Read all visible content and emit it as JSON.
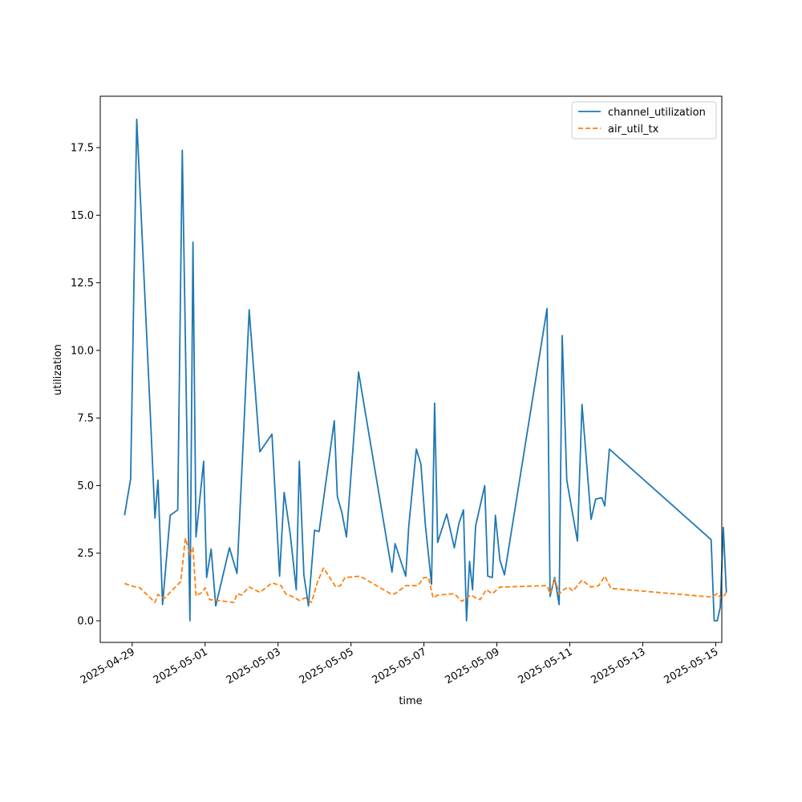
{
  "chart_data": {
    "type": "line",
    "title": "",
    "xlabel": "time",
    "ylabel": "utilization",
    "x_axis_type": "date",
    "xlim": [
      "2025-04-28T03:00",
      "2025-05-15T04:00"
    ],
    "ylim": [
      -0.8,
      19.4
    ],
    "x_ticks": [
      "2025-04-29",
      "2025-05-01",
      "2025-05-03",
      "2025-05-05",
      "2025-05-07",
      "2025-05-09",
      "2025-05-11",
      "2025-05-13",
      "2025-05-15"
    ],
    "y_ticks": [
      "0.0",
      "2.5",
      "5.0",
      "7.5",
      "10.0",
      "12.5",
      "15.0",
      "17.5"
    ],
    "y_tick_values": [
      0,
      2.5,
      5,
      7.5,
      10,
      12.5,
      15,
      17.5
    ],
    "grid": false,
    "legend_position": "top-right",
    "series": [
      {
        "name": "channel_utilization",
        "color": "#1f77b4",
        "dash": "solid",
        "points": [
          [
            "2025-04-28T19:00",
            3.9
          ],
          [
            "2025-04-28T23:00",
            5.25
          ],
          [
            "2025-04-29T03:00",
            18.55
          ],
          [
            "2025-04-29T12:00",
            7.6
          ],
          [
            "2025-04-29T15:00",
            3.8
          ],
          [
            "2025-04-29T17:00",
            5.2
          ],
          [
            "2025-04-29T20:00",
            0.6
          ],
          [
            "2025-04-30T01:00",
            3.9
          ],
          [
            "2025-04-30T06:00",
            4.1
          ],
          [
            "2025-04-30T09:00",
            17.4
          ],
          [
            "2025-04-30T14:00",
            0.0
          ],
          [
            "2025-04-30T16:00",
            14.0
          ],
          [
            "2025-04-30T18:00",
            3.1
          ],
          [
            "2025-04-30T23:00",
            5.9
          ],
          [
            "2025-05-01T01:00",
            1.6
          ],
          [
            "2025-05-01T04:00",
            2.65
          ],
          [
            "2025-05-01T07:00",
            0.55
          ],
          [
            "2025-05-01T16:00",
            2.7
          ],
          [
            "2025-05-01T21:00",
            1.75
          ],
          [
            "2025-05-02T01:00",
            6.5
          ],
          [
            "2025-05-02T05:00",
            11.5
          ],
          [
            "2025-05-02T12:00",
            6.25
          ],
          [
            "2025-05-02T20:00",
            6.9
          ],
          [
            "2025-05-03T01:00",
            1.65
          ],
          [
            "2025-05-03T04:00",
            4.75
          ],
          [
            "2025-05-03T08:00",
            3.2
          ],
          [
            "2025-05-03T12:00",
            1.15
          ],
          [
            "2025-05-03T14:00",
            5.9
          ],
          [
            "2025-05-03T17:00",
            1.7
          ],
          [
            "2025-05-03T20:00",
            0.55
          ],
          [
            "2025-05-04T00:00",
            3.35
          ],
          [
            "2025-05-04T03:00",
            3.3
          ],
          [
            "2025-05-04T13:00",
            7.4
          ],
          [
            "2025-05-04T15:00",
            4.6
          ],
          [
            "2025-05-04T18:00",
            4.0
          ],
          [
            "2025-05-04T21:00",
            3.1
          ],
          [
            "2025-05-05T05:00",
            9.2
          ],
          [
            "2025-05-06T03:00",
            1.8
          ],
          [
            "2025-05-06T05:00",
            2.85
          ],
          [
            "2025-05-06T12:00",
            1.65
          ],
          [
            "2025-05-06T14:00",
            3.5
          ],
          [
            "2025-05-06T19:00",
            6.35
          ],
          [
            "2025-05-06T22:00",
            5.8
          ],
          [
            "2025-05-07T01:00",
            3.5
          ],
          [
            "2025-05-07T05:00",
            1.35
          ],
          [
            "2025-05-07T07:00",
            8.05
          ],
          [
            "2025-05-07T09:00",
            2.9
          ],
          [
            "2025-05-07T15:00",
            3.95
          ],
          [
            "2025-05-07T20:00",
            2.7
          ],
          [
            "2025-05-07T23:00",
            3.6
          ],
          [
            "2025-05-08T02:00",
            4.1
          ],
          [
            "2025-05-08T04:00",
            0.0
          ],
          [
            "2025-05-08T06:00",
            2.2
          ],
          [
            "2025-05-08T08:00",
            1.15
          ],
          [
            "2025-05-08T10:00",
            3.5
          ],
          [
            "2025-05-08T16:00",
            5.0
          ],
          [
            "2025-05-08T18:00",
            1.65
          ],
          [
            "2025-05-08T21:00",
            1.6
          ],
          [
            "2025-05-08T23:00",
            3.9
          ],
          [
            "2025-05-09T02:00",
            2.25
          ],
          [
            "2025-05-09T05:00",
            1.7
          ],
          [
            "2025-05-10T09:00",
            11.55
          ],
          [
            "2025-05-10T11:00",
            0.9
          ],
          [
            "2025-05-10T14:00",
            1.6
          ],
          [
            "2025-05-10T17:00",
            0.6
          ],
          [
            "2025-05-10T19:00",
            10.55
          ],
          [
            "2025-05-10T22:00",
            5.2
          ],
          [
            "2025-05-11T02:00",
            3.9
          ],
          [
            "2025-05-11T05:00",
            2.95
          ],
          [
            "2025-05-11T08:00",
            8.0
          ],
          [
            "2025-05-11T14:00",
            3.75
          ],
          [
            "2025-05-11T17:00",
            4.5
          ],
          [
            "2025-05-11T21:00",
            4.55
          ],
          [
            "2025-05-11T23:00",
            4.25
          ],
          [
            "2025-05-12T02:00",
            6.35
          ],
          [
            "2025-05-14T21:00",
            3.0
          ],
          [
            "2025-05-14T23:00",
            0.0
          ],
          [
            "2025-05-15T01:00",
            0.0
          ],
          [
            "2025-05-15T03:00",
            0.5
          ],
          [
            "2025-05-15T05:00",
            3.45
          ],
          [
            "2025-05-15T07:00",
            1.05
          ]
        ]
      },
      {
        "name": "air_util_tx",
        "color": "#ff7f0e",
        "dash": "dashed",
        "points": [
          [
            "2025-04-28T19:00",
            1.38
          ],
          [
            "2025-04-29T00:00",
            1.28
          ],
          [
            "2025-04-29T05:00",
            1.22
          ],
          [
            "2025-04-29T15:00",
            0.68
          ],
          [
            "2025-04-29T17:00",
            0.98
          ],
          [
            "2025-04-29T21:00",
            0.82
          ],
          [
            "2025-04-30T08:00",
            1.45
          ],
          [
            "2025-04-30T11:00",
            3.05
          ],
          [
            "2025-04-30T14:00",
            2.45
          ],
          [
            "2025-04-30T16:00",
            2.7
          ],
          [
            "2025-04-30T18:00",
            0.92
          ],
          [
            "2025-04-30T22:00",
            1.05
          ],
          [
            "2025-05-01T00:00",
            1.22
          ],
          [
            "2025-05-01T03:00",
            0.78
          ],
          [
            "2025-05-01T19:00",
            0.68
          ],
          [
            "2025-05-01T21:00",
            1.0
          ],
          [
            "2025-05-02T00:00",
            0.95
          ],
          [
            "2025-05-02T05:00",
            1.25
          ],
          [
            "2025-05-02T12:00",
            1.05
          ],
          [
            "2025-05-02T20:00",
            1.4
          ],
          [
            "2025-05-03T02:00",
            1.3
          ],
          [
            "2025-05-03T05:00",
            1.0
          ],
          [
            "2025-05-03T10:00",
            0.88
          ],
          [
            "2025-05-03T14:00",
            0.75
          ],
          [
            "2025-05-03T18:00",
            0.85
          ],
          [
            "2025-05-03T22:00",
            0.68
          ],
          [
            "2025-05-04T02:00",
            1.45
          ],
          [
            "2025-05-04T06:00",
            1.95
          ],
          [
            "2025-05-04T14:00",
            1.25
          ],
          [
            "2025-05-04T17:00",
            1.3
          ],
          [
            "2025-05-04T20:00",
            1.6
          ],
          [
            "2025-05-05T06:00",
            1.65
          ],
          [
            "2025-05-06T02:00",
            1.0
          ],
          [
            "2025-05-06T05:00",
            1.0
          ],
          [
            "2025-05-06T12:00",
            1.3
          ],
          [
            "2025-05-06T20:00",
            1.3
          ],
          [
            "2025-05-07T00:00",
            1.6
          ],
          [
            "2025-05-07T03:00",
            1.6
          ],
          [
            "2025-05-07T06:00",
            0.85
          ],
          [
            "2025-05-07T09:00",
            0.95
          ],
          [
            "2025-05-07T20:00",
            1.0
          ],
          [
            "2025-05-08T01:00",
            0.72
          ],
          [
            "2025-05-08T04:00",
            0.85
          ],
          [
            "2025-05-08T07:00",
            0.95
          ],
          [
            "2025-05-08T10:00",
            0.85
          ],
          [
            "2025-05-08T13:00",
            0.78
          ],
          [
            "2025-05-08T17:00",
            1.15
          ],
          [
            "2025-05-08T21:00",
            1.0
          ],
          [
            "2025-05-09T02:00",
            1.25
          ],
          [
            "2025-05-09T05:00",
            1.25
          ],
          [
            "2025-05-10T09:00",
            1.3
          ],
          [
            "2025-05-10T11:00",
            1.0
          ],
          [
            "2025-05-10T14:00",
            1.55
          ],
          [
            "2025-05-10T17:00",
            1.0
          ],
          [
            "2025-05-10T20:00",
            1.15
          ],
          [
            "2025-05-10T23:00",
            1.25
          ],
          [
            "2025-05-11T02:00",
            1.1
          ],
          [
            "2025-05-11T08:00",
            1.5
          ],
          [
            "2025-05-11T14:00",
            1.25
          ],
          [
            "2025-05-11T19:00",
            1.3
          ],
          [
            "2025-05-11T23:00",
            1.65
          ],
          [
            "2025-05-12T03:00",
            1.2
          ],
          [
            "2025-05-14T21:00",
            0.88
          ],
          [
            "2025-05-15T01:00",
            1.0
          ],
          [
            "2025-05-15T04:00",
            0.82
          ],
          [
            "2025-05-15T07:00",
            1.05
          ]
        ]
      }
    ]
  }
}
